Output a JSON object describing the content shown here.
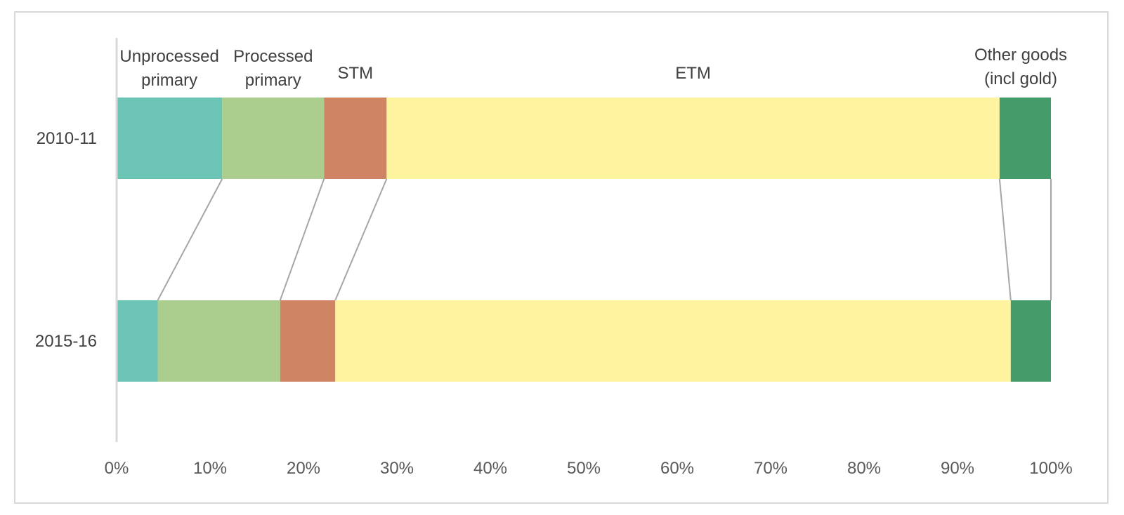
{
  "chart_data": {
    "type": "bar",
    "orientation": "horizontal",
    "stacked": "100%",
    "categories": [
      "2010-11",
      "2015-16"
    ],
    "series": [
      {
        "name": "Unprocessed primary",
        "label_lines": [
          "Unprocessed",
          "primary"
        ],
        "values": [
          11.3,
          4.4
        ],
        "color": "#6cc4b4"
      },
      {
        "name": "Processed primary",
        "label_lines": [
          "Processed",
          "primary"
        ],
        "values": [
          10.9,
          13.1
        ],
        "color": "#abcd8d"
      },
      {
        "name": "STM",
        "label_lines": [
          "STM"
        ],
        "values": [
          6.7,
          5.9
        ],
        "color": "#cf8564"
      },
      {
        "name": "ETM",
        "label_lines": [
          "ETM"
        ],
        "values": [
          65.6,
          72.3
        ],
        "color": "#fef49f"
      },
      {
        "name": "Other goods (incl gold)",
        "label_lines": [
          "Other goods",
          "(incl gold)"
        ],
        "values": [
          5.5,
          4.3
        ],
        "color": "#469b6a"
      }
    ],
    "xlim": [
      0,
      100
    ],
    "xticks": [
      "0%",
      "10%",
      "20%",
      "30%",
      "40%",
      "50%",
      "60%",
      "70%",
      "80%",
      "90%",
      "100%"
    ],
    "grid": false,
    "legend": "labels above top bar",
    "connector_color": "#a6a6a6"
  }
}
